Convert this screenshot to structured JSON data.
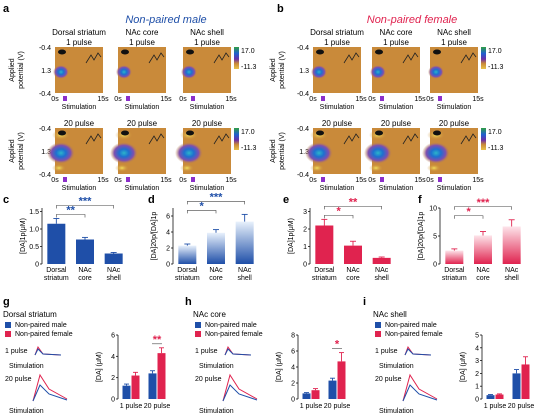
{
  "figure": {
    "panel_letters": [
      "a",
      "b",
      "c",
      "d",
      "e",
      "f",
      "g",
      "h",
      "i"
    ],
    "groups": {
      "male": {
        "title": "Non-paired male",
        "color": "#1f4fa8"
      },
      "female": {
        "title": "Non-paired female",
        "color": "#e0234f"
      }
    },
    "regions": [
      "Dorsal striatum",
      "NAc core",
      "NAc shell"
    ],
    "pulse_labels": [
      "1 pulse",
      "20 pulse"
    ],
    "axis_ylabel_line1": "Applied",
    "axis_ylabel_line2": "potential (V)",
    "potential_ticks": [
      "-0.4",
      "1.3",
      "-0.4"
    ],
    "time_ticks": [
      "0s",
      "15s"
    ],
    "stimulation_label": "Stimulation",
    "colorbar_ticks": [
      "17.0",
      "-11.3"
    ],
    "colors": {
      "map_background": "#c98a3a",
      "male_bar": "#1f4fa8",
      "female_bar": "#e0234f",
      "male_light": "#cfe0f7",
      "female_light": "#fbd3dc",
      "stim_marker": "#8b2fc9"
    }
  },
  "chart_data": [
    {
      "panel": "c",
      "type": "bar",
      "ylabel": "[DA]1p(μM)",
      "categories": [
        [
          "Dorsal",
          "striatum"
        ],
        [
          "NAc",
          "core"
        ],
        [
          "NAc",
          "shell"
        ]
      ],
      "values": [
        1.15,
        0.7,
        0.3
      ],
      "errors": [
        0.15,
        0.06,
        0.03
      ],
      "ylim": [
        0,
        1.6
      ],
      "yticks": [
        "0",
        "0.5",
        "1.0",
        "1.5"
      ],
      "color": "#1f4fa8",
      "significance": [
        {
          "from": 0,
          "to": 1,
          "label": "**",
          "level": 1
        },
        {
          "from": 0,
          "to": 2,
          "label": "***",
          "level": 2
        }
      ]
    },
    {
      "panel": "d",
      "type": "bar",
      "ylabel": "[DA]20p/[DA]1p",
      "categories": [
        [
          "Dorsal",
          "striatum"
        ],
        [
          "NAc",
          "core"
        ],
        [
          "NAc",
          "shell"
        ]
      ],
      "values": [
        2.3,
        3.9,
        5.3
      ],
      "errors": [
        0.2,
        0.4,
        0.9
      ],
      "ylim": [
        0,
        7
      ],
      "yticks": [
        "0",
        "2",
        "4",
        "6"
      ],
      "color": "#1f4fa8",
      "gradient": true,
      "significance": [
        {
          "from": 0,
          "to": 1,
          "label": "*",
          "level": 1
        },
        {
          "from": 0,
          "to": 2,
          "label": "***",
          "level": 2
        }
      ]
    },
    {
      "panel": "e",
      "type": "bar",
      "ylabel": "[DA]1p(μM)",
      "categories": [
        [
          "Dorsal",
          "striatum"
        ],
        [
          "NAc",
          "core"
        ],
        [
          "NAc",
          "shell"
        ]
      ],
      "values": [
        2.2,
        1.05,
        0.35
      ],
      "errors": [
        0.35,
        0.25,
        0.05
      ],
      "ylim": [
        0,
        3.2
      ],
      "yticks": [
        "0",
        "1",
        "2",
        "3"
      ],
      "color": "#e0234f",
      "significance": [
        {
          "from": 0,
          "to": 1,
          "label": "*",
          "level": 1
        },
        {
          "from": 0,
          "to": 2,
          "label": "**",
          "level": 2
        }
      ]
    },
    {
      "panel": "f",
      "type": "bar",
      "ylabel": "[DA]20p/[DA]1p",
      "categories": [
        [
          "Dorsal",
          "striatum"
        ],
        [
          "NAc",
          "core"
        ],
        [
          "NAc",
          "shell"
        ]
      ],
      "values": [
        2.4,
        5.1,
        6.7
      ],
      "errors": [
        0.3,
        0.7,
        1.2
      ],
      "ylim": [
        0,
        10
      ],
      "yticks": [
        "0",
        "5",
        "10"
      ],
      "color": "#e0234f",
      "gradient": true,
      "significance": [
        {
          "from": 0,
          "to": 1,
          "label": "*",
          "level": 1
        },
        {
          "from": 0,
          "to": 2,
          "label": "***",
          "level": 2
        }
      ]
    },
    {
      "panel": "g",
      "type": "bar",
      "title": "Dorsal striatum",
      "ylabel": "[DA] (μM)",
      "categories": [
        "1 pulse",
        "20 pulse"
      ],
      "series": [
        {
          "name": "Non-paired male",
          "values": [
            1.25,
            2.4
          ],
          "errors": [
            0.15,
            0.25
          ]
        },
        {
          "name": "Non-paired female",
          "values": [
            2.2,
            4.3
          ],
          "errors": [
            0.3,
            0.5
          ]
        }
      ],
      "ylim": [
        0,
        6
      ],
      "yticks": [
        "0",
        "2",
        "4",
        "6"
      ],
      "significance": [
        {
          "category": 1,
          "label": "**"
        }
      ]
    },
    {
      "panel": "h",
      "type": "bar",
      "title": "NAc core",
      "ylabel": "[DA] (μM)",
      "categories": [
        "1 pulse",
        "20 pulse"
      ],
      "series": [
        {
          "name": "Non-paired male",
          "values": [
            0.7,
            2.3
          ],
          "errors": [
            0.1,
            0.3
          ]
        },
        {
          "name": "Non-paired female",
          "values": [
            1.1,
            4.7
          ],
          "errors": [
            0.2,
            1.1
          ]
        }
      ],
      "ylim": [
        0,
        8
      ],
      "yticks": [
        "0",
        "2",
        "4",
        "6",
        "8"
      ],
      "significance": [
        {
          "category": 1,
          "label": "*"
        }
      ]
    },
    {
      "panel": "i",
      "type": "bar",
      "title": "NAc shell",
      "ylabel": "[DA] (μM)",
      "categories": [
        "1 pulse",
        "20 pulse"
      ],
      "series": [
        {
          "name": "Non-paired male",
          "values": [
            0.3,
            2.0
          ],
          "errors": [
            0.05,
            0.3
          ]
        },
        {
          "name": "Non-paired female",
          "values": [
            0.35,
            2.7
          ],
          "errors": [
            0.05,
            0.6
          ]
        }
      ],
      "ylim": [
        0,
        5
      ],
      "yticks": [
        "0",
        "1",
        "2",
        "3",
        "4",
        "5"
      ],
      "significance": []
    }
  ]
}
